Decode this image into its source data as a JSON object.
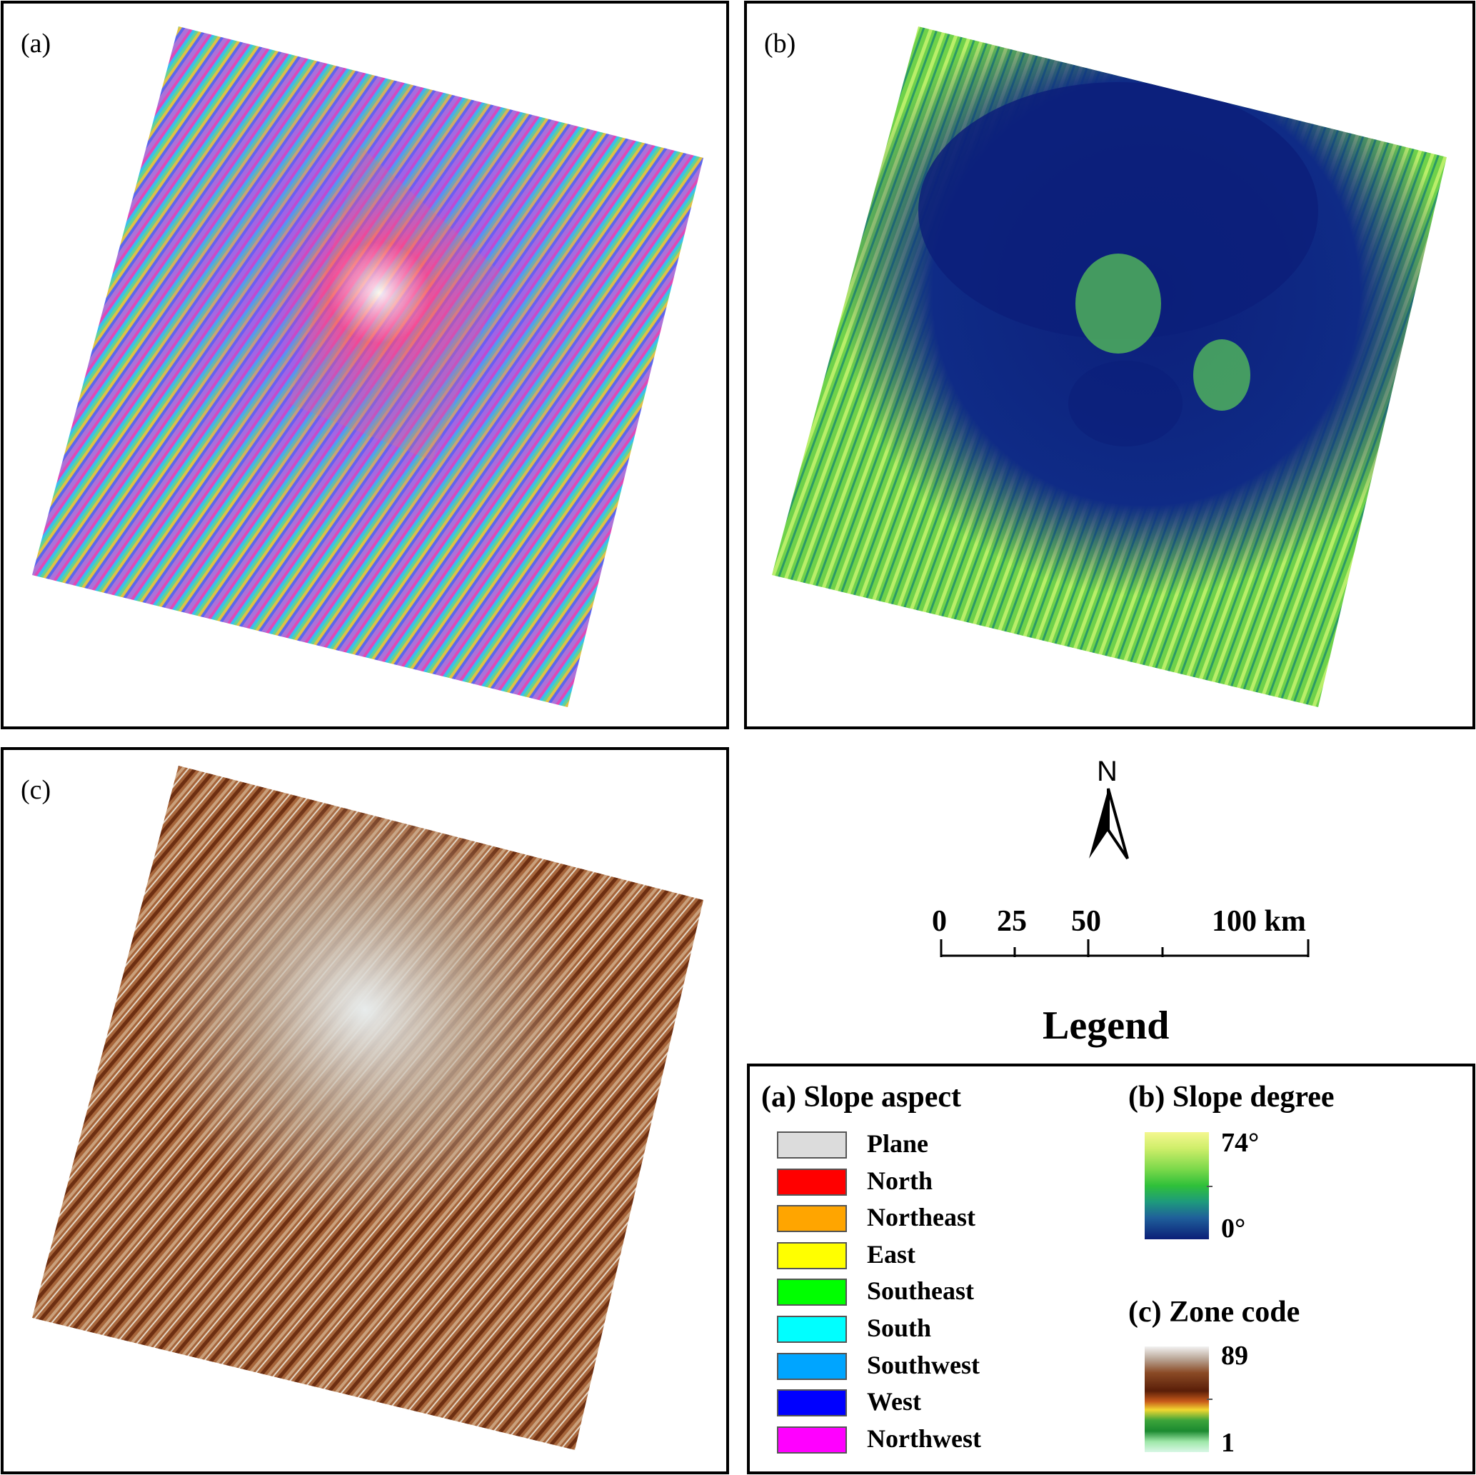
{
  "panels": {
    "a": {
      "label": "(a)"
    },
    "b": {
      "label": "(b)"
    },
    "c": {
      "label": "(c)"
    }
  },
  "north_arrow": {
    "letter": "N"
  },
  "scale_bar": {
    "ticks": [
      "0",
      "25",
      "50",
      "100 km"
    ]
  },
  "legend": {
    "title": "Legend",
    "aspect": {
      "header": "(a) Slope aspect",
      "items": [
        {
          "label": "Plane",
          "color": "#dcdcdc"
        },
        {
          "label": "North",
          "color": "#ff0000"
        },
        {
          "label": "Northeast",
          "color": "#ffa500"
        },
        {
          "label": "East",
          "color": "#ffff00"
        },
        {
          "label": "Southeast",
          "color": "#00ff00"
        },
        {
          "label": "South",
          "color": "#00ffff"
        },
        {
          "label": "Southwest",
          "color": "#00a5ff"
        },
        {
          "label": "West",
          "color": "#0000ff"
        },
        {
          "label": "Northwest",
          "color": "#ff00ff"
        }
      ]
    },
    "slope": {
      "header": "(b) Slope degree",
      "max": "74°",
      "min": "0°"
    },
    "zone": {
      "header": "(c) Zone code",
      "max": "89",
      "min": "1"
    }
  }
}
